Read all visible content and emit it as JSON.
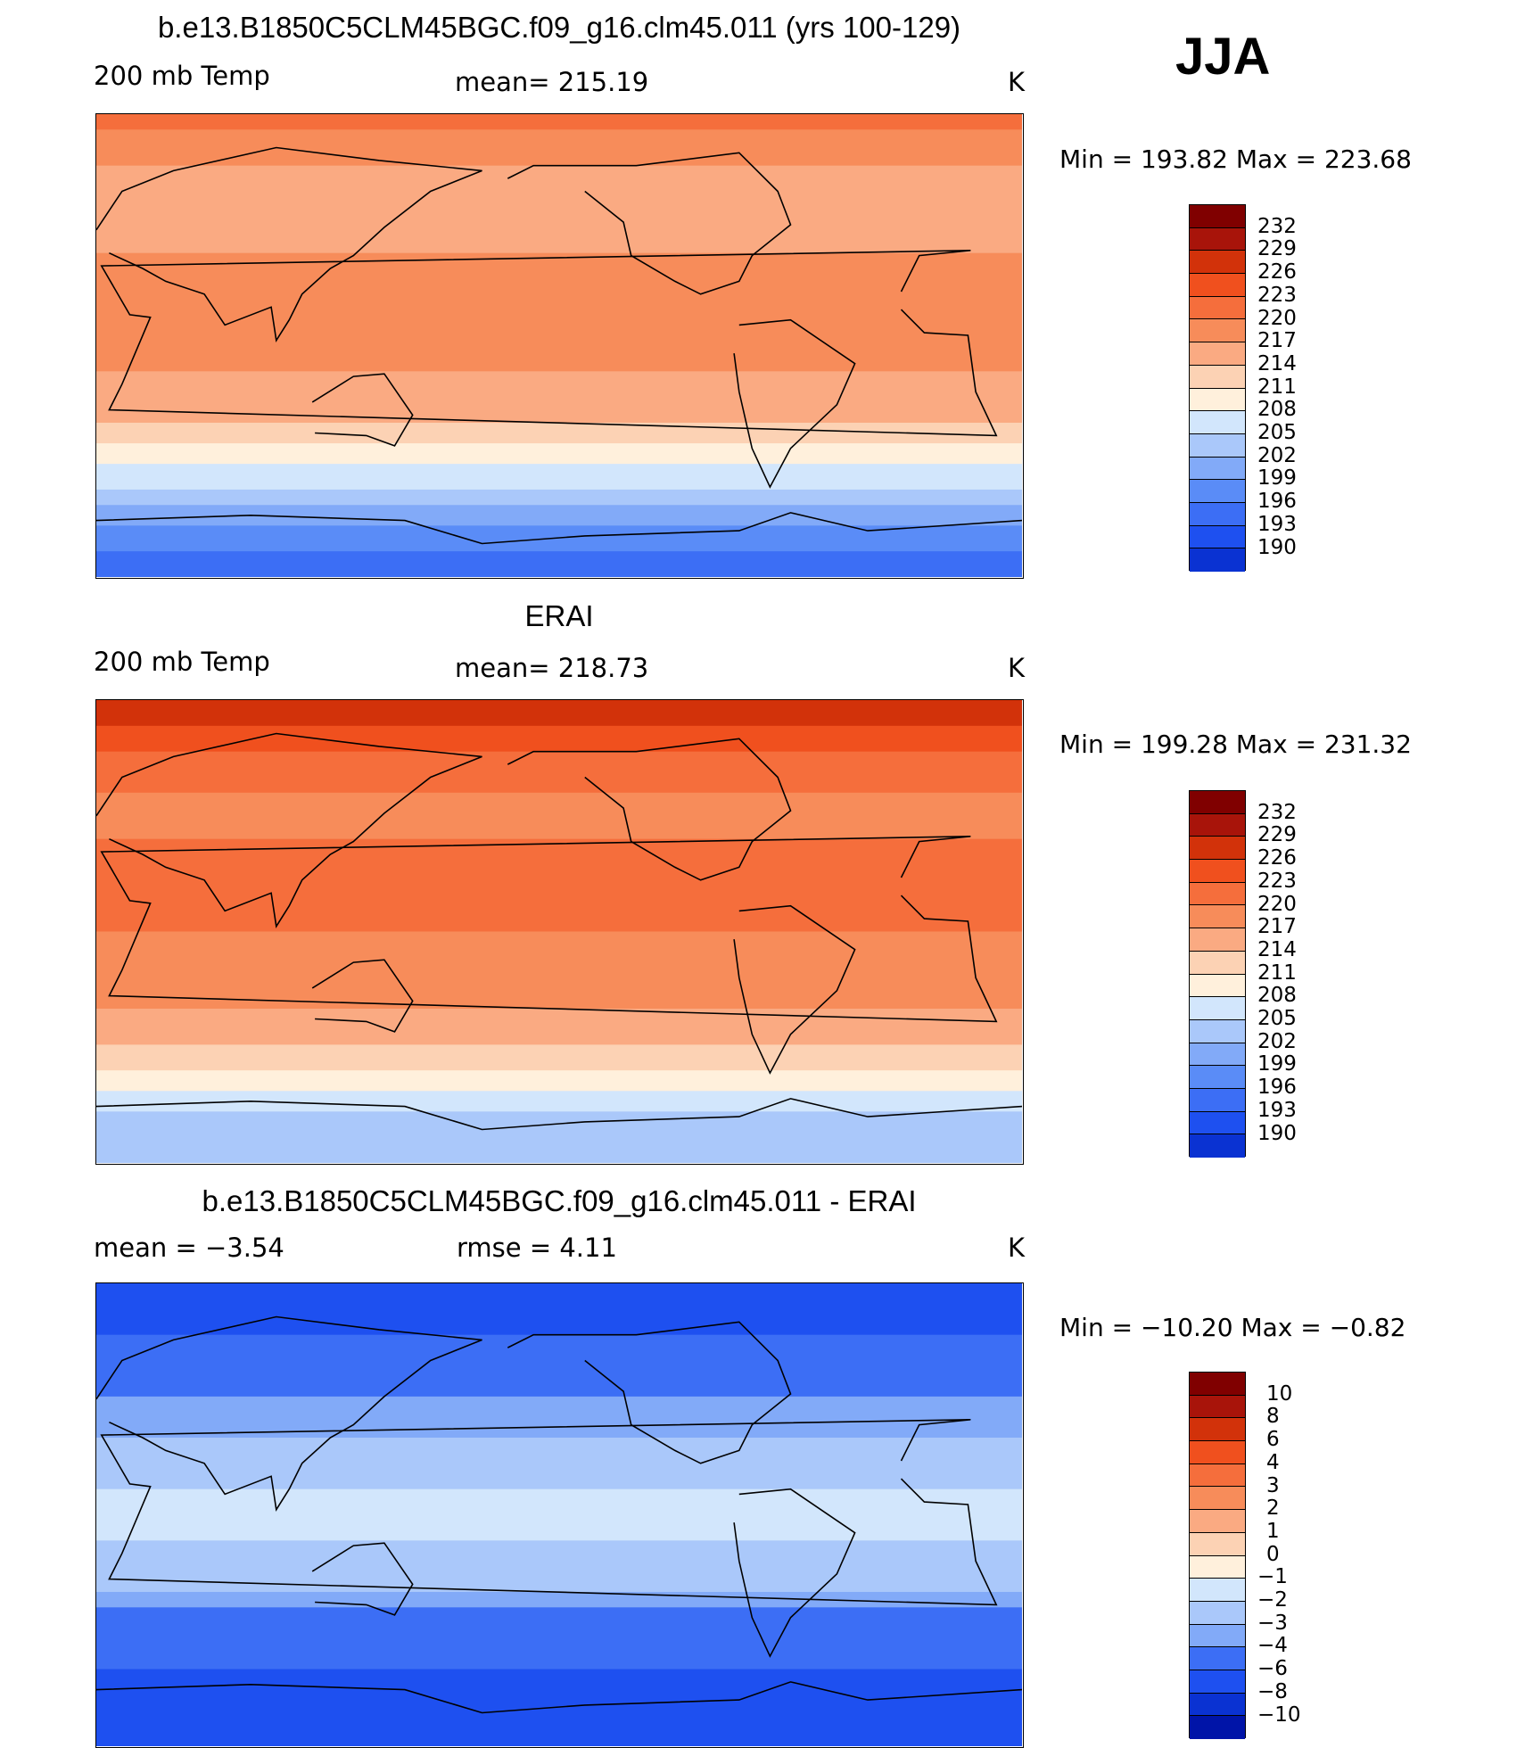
{
  "season": "JJA",
  "panels": [
    {
      "title": "b.e13.B1850C5CLM45BGC.f09_g16.clm45.011 (yrs 100-129)",
      "left_label": "200 mb Temp",
      "center_label": "mean= 215.19",
      "units": "K",
      "min_max": "Min = 193.82 Max = 223.68"
    },
    {
      "title": "ERAI",
      "left_label": "200 mb Temp",
      "center_label": "mean= 218.73",
      "units": "K",
      "min_max": "Min = 199.28 Max = 231.32"
    },
    {
      "title": "b.e13.B1850C5CLM45BGC.f09_g16.clm45.011 - ERAI",
      "left_label": "mean =   −3.54",
      "center_label": "rmse =    4.11",
      "units": "K",
      "min_max": "Min = −10.20 Max =  −0.82"
    }
  ],
  "colors": {
    "temp_scale": [
      "#000080",
      "#0014a8",
      "#0a32d2",
      "#1e50f0",
      "#3c6ef5",
      "#5a8cf7",
      "#82aaf8",
      "#aac8fa",
      "#d2e6fc",
      "#fff0dc",
      "#fcd2b4",
      "#faaa82",
      "#f78c5a",
      "#f56e3c",
      "#f0501e",
      "#d2320a",
      "#a8140a",
      "#800000"
    ],
    "diff_scale": [
      "#000080",
      "#0014a8",
      "#0a32d2",
      "#1e50f0",
      "#3c6ef5",
      "#82aaf8",
      "#aac8fa",
      "#d2e6fc",
      "#fff0dc",
      "#fcd2b4",
      "#faaa82",
      "#f78c5a",
      "#f56e3c",
      "#f0501e",
      "#d2320a",
      "#a8140a",
      "#800000"
    ]
  },
  "chart_data": [
    {
      "type": "heatmap",
      "title": "b.e13.B1850C5CLM45BGC.f09_g16.clm45.011 (yrs 100-129)",
      "variable": "200 mb Temp",
      "units": "K",
      "mean": 215.19,
      "min": 193.82,
      "max": 223.68,
      "colorbar_levels": [
        190,
        193,
        196,
        199,
        202,
        205,
        208,
        211,
        214,
        217,
        220,
        223,
        226,
        229,
        232
      ],
      "zonal_profile": {
        "lat": [
          90,
          80,
          70,
          60,
          50,
          40,
          30,
          20,
          10,
          0,
          -10,
          -20,
          -30,
          -40,
          -50,
          -60,
          -70,
          -80,
          -90
        ],
        "value": [
          221,
          219,
          217,
          216,
          215,
          216,
          218,
          218,
          218,
          218,
          217,
          216,
          214,
          210,
          207,
          203,
          199,
          196,
          194
        ]
      }
    },
    {
      "type": "heatmap",
      "title": "ERAI",
      "variable": "200 mb Temp",
      "units": "K",
      "mean": 218.73,
      "min": 199.28,
      "max": 231.32,
      "colorbar_levels": [
        190,
        193,
        196,
        199,
        202,
        205,
        208,
        211,
        214,
        217,
        220,
        223,
        226,
        229,
        232
      ],
      "zonal_profile": {
        "lat": [
          90,
          80,
          70,
          60,
          50,
          40,
          30,
          20,
          10,
          0,
          -10,
          -20,
          -30,
          -40,
          -50,
          -60,
          -70,
          -80,
          -90
        ],
        "value": [
          229,
          226,
          223,
          221,
          219,
          219,
          221,
          221,
          221,
          220,
          219,
          218,
          217,
          215,
          212,
          209,
          205,
          203,
          202
        ]
      }
    },
    {
      "type": "heatmap",
      "title": "b.e13.B1850C5CLM45BGC.f09_g16.clm45.011 - ERAI",
      "units": "K",
      "mean": -3.54,
      "rmse": 4.11,
      "min": -10.2,
      "max": -0.82,
      "colorbar_levels": [
        -10,
        -8,
        -6,
        -4,
        -3,
        -2,
        -1,
        0,
        1,
        2,
        3,
        4,
        6,
        8,
        10
      ],
      "zonal_profile": {
        "lat": [
          90,
          80,
          70,
          60,
          50,
          40,
          30,
          20,
          10,
          0,
          -10,
          -20,
          -30,
          -40,
          -50,
          -60,
          -70,
          -80,
          -90
        ],
        "value": [
          -8,
          -7,
          -6,
          -5,
          -4.5,
          -3.5,
          -3,
          -2.5,
          -2,
          -2,
          -2,
          -2.5,
          -3,
          -4.5,
          -5.5,
          -6,
          -6.5,
          -7,
          -7.5
        ]
      }
    }
  ]
}
